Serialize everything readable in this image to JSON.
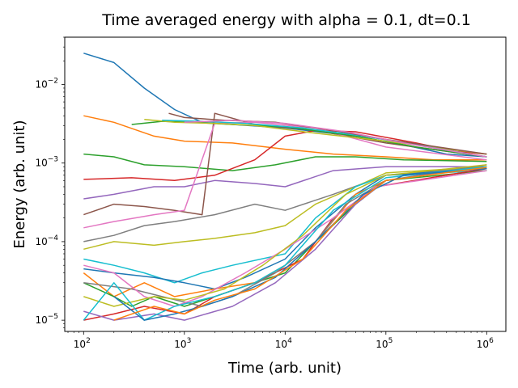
{
  "chart_data": {
    "type": "line",
    "title": "Time averaged energy with alpha = 0.1, dt=0.1",
    "xlabel": "Time (arb. unit)",
    "ylabel": "Energy (arb. unit)",
    "xscale": "log",
    "yscale": "log",
    "xlim": [
      65,
      1550000
    ],
    "ylim": [
      7.2e-06,
      0.04
    ],
    "grid": false,
    "x_ticks": [
      {
        "value": 100,
        "base": "10",
        "exp": "2"
      },
      {
        "value": 1000,
        "base": "10",
        "exp": "3"
      },
      {
        "value": 10000,
        "base": "10",
        "exp": "4"
      },
      {
        "value": 100000,
        "base": "10",
        "exp": "5"
      },
      {
        "value": 1000000,
        "base": "10",
        "exp": "6"
      }
    ],
    "y_ticks": [
      {
        "value": 1e-05,
        "base": "10",
        "exp": "−5"
      },
      {
        "value": 0.0001,
        "base": "10",
        "exp": "−4"
      },
      {
        "value": 0.001,
        "base": "10",
        "exp": "−3"
      },
      {
        "value": 0.01,
        "base": "10",
        "exp": "−2"
      }
    ],
    "series": [
      {
        "color": "#1f77b4",
        "points": [
          [
            100,
            0.025
          ],
          [
            200,
            0.019
          ],
          [
            400,
            0.009
          ],
          [
            800,
            0.0048
          ],
          [
            1500,
            0.0033
          ],
          [
            3000,
            0.0031
          ],
          [
            10000,
            0.0028
          ],
          [
            50000,
            0.0022
          ],
          [
            150000,
            0.0017
          ],
          [
            400000,
            0.0013
          ],
          [
            1000000,
            0.0012
          ]
        ]
      },
      {
        "color": "#ff7f0e",
        "points": [
          [
            100,
            0.004
          ],
          [
            200,
            0.0033
          ],
          [
            500,
            0.0022
          ],
          [
            1000,
            0.0019
          ],
          [
            3000,
            0.0018
          ],
          [
            10000,
            0.0015
          ],
          [
            30000,
            0.0013
          ],
          [
            100000,
            0.0012
          ],
          [
            300000,
            0.0011
          ],
          [
            1000000,
            0.0011
          ]
        ]
      },
      {
        "color": "#2ca02c",
        "points": [
          [
            100,
            0.0013
          ],
          [
            200,
            0.0012
          ],
          [
            400,
            0.00095
          ],
          [
            1000,
            0.0009
          ],
          [
            3000,
            0.0008
          ],
          [
            8000,
            0.00095
          ],
          [
            20000,
            0.0012
          ],
          [
            50000,
            0.0012
          ],
          [
            150000,
            0.0011
          ],
          [
            1000000,
            0.00105
          ]
        ]
      },
      {
        "color": "#d62728",
        "points": [
          [
            100,
            0.00062
          ],
          [
            300,
            0.00065
          ],
          [
            800,
            0.0006
          ],
          [
            2000,
            0.0007
          ],
          [
            5000,
            0.0011
          ],
          [
            10000,
            0.0022
          ],
          [
            20000,
            0.0026
          ],
          [
            50000,
            0.0025
          ],
          [
            200000,
            0.0018
          ],
          [
            500000,
            0.0014
          ],
          [
            1000000,
            0.0013
          ]
        ]
      },
      {
        "color": "#9467bd",
        "points": [
          [
            100,
            0.00035
          ],
          [
            200,
            0.0004
          ],
          [
            500,
            0.0005
          ],
          [
            1000,
            0.0005
          ],
          [
            2000,
            0.0006
          ],
          [
            5000,
            0.00055
          ],
          [
            10000,
            0.0005
          ],
          [
            30000,
            0.0008
          ],
          [
            100000,
            0.0009
          ],
          [
            1000000,
            0.0009
          ]
        ]
      },
      {
        "color": "#8c564b",
        "points": [
          [
            100,
            0.00022
          ],
          [
            200,
            0.0003
          ],
          [
            400,
            0.00028
          ],
          [
            800,
            0.00025
          ],
          [
            1500,
            0.00022
          ],
          [
            2000,
            0.0043
          ],
          [
            5000,
            0.0031
          ],
          [
            20000,
            0.0026
          ],
          [
            100000,
            0.0018
          ],
          [
            1000000,
            0.0012
          ]
        ]
      },
      {
        "color": "#e377c2",
        "points": [
          [
            100,
            0.00015
          ],
          [
            200,
            0.00018
          ],
          [
            500,
            0.00022
          ],
          [
            1000,
            0.00025
          ],
          [
            2000,
            0.0032
          ],
          [
            5000,
            0.0033
          ],
          [
            20000,
            0.0028
          ],
          [
            100000,
            0.0016
          ],
          [
            1000000,
            0.0011
          ]
        ]
      },
      {
        "color": "#7f7f7f",
        "points": [
          [
            100,
            0.0001
          ],
          [
            200,
            0.00012
          ],
          [
            400,
            0.00016
          ],
          [
            800,
            0.00018
          ],
          [
            2000,
            0.00022
          ],
          [
            5000,
            0.0003
          ],
          [
            10000,
            0.00025
          ],
          [
            30000,
            0.0004
          ],
          [
            100000,
            0.0007
          ],
          [
            1000000,
            0.0009
          ]
        ]
      },
      {
        "color": "#bcbd22",
        "points": [
          [
            100,
            8e-05
          ],
          [
            200,
            0.0001
          ],
          [
            500,
            9e-05
          ],
          [
            1000,
            0.0001
          ],
          [
            2000,
            0.00011
          ],
          [
            5000,
            0.00013
          ],
          [
            10000,
            0.00016
          ],
          [
            20000,
            0.0003
          ],
          [
            50000,
            0.0005
          ],
          [
            100000,
            0.00075
          ],
          [
            1000000,
            0.0009
          ]
        ]
      },
      {
        "color": "#17becf",
        "points": [
          [
            100,
            6e-05
          ],
          [
            200,
            5e-05
          ],
          [
            400,
            4e-05
          ],
          [
            800,
            3e-05
          ],
          [
            1500,
            4e-05
          ],
          [
            3000,
            5e-05
          ],
          [
            10000,
            7e-05
          ],
          [
            20000,
            0.0002
          ],
          [
            50000,
            0.0005
          ],
          [
            100000,
            0.0007
          ],
          [
            1000000,
            0.0008
          ]
        ]
      },
      {
        "color": "#1f77b4",
        "points": [
          [
            100,
            4.5e-05
          ],
          [
            200,
            4e-05
          ],
          [
            500,
            3.5e-05
          ],
          [
            1000,
            3e-05
          ],
          [
            2000,
            2.5e-05
          ],
          [
            4000,
            3.5e-05
          ],
          [
            10000,
            6e-05
          ],
          [
            20000,
            0.00015
          ],
          [
            50000,
            0.0004
          ],
          [
            100000,
            0.0007
          ],
          [
            1000000,
            0.00085
          ]
        ]
      },
      {
        "color": "#ff7f0e",
        "points": [
          [
            100,
            4e-05
          ],
          [
            200,
            2e-05
          ],
          [
            400,
            3e-05
          ],
          [
            800,
            2e-05
          ],
          [
            2000,
            2.5e-05
          ],
          [
            5000,
            3e-05
          ],
          [
            10000,
            5e-05
          ],
          [
            20000,
            0.0001
          ],
          [
            50000,
            0.0004
          ],
          [
            100000,
            0.0006
          ],
          [
            1000000,
            0.0009
          ]
        ]
      },
      {
        "color": "#2ca02c",
        "points": [
          [
            100,
            3e-05
          ],
          [
            200,
            2e-05
          ],
          [
            300,
            1.5e-05
          ],
          [
            500,
            2e-05
          ],
          [
            1000,
            1.5e-05
          ],
          [
            2000,
            2e-05
          ],
          [
            5000,
            3e-05
          ],
          [
            10000,
            4e-05
          ],
          [
            20000,
            0.0001
          ],
          [
            50000,
            0.0003
          ],
          [
            100000,
            0.0006
          ],
          [
            1000000,
            0.0008
          ]
        ]
      },
      {
        "color": "#d62728",
        "points": [
          [
            100,
            1e-05
          ],
          [
            200,
            1.2e-05
          ],
          [
            400,
            1.5e-05
          ],
          [
            1000,
            1.2e-05
          ],
          [
            2000,
            2e-05
          ],
          [
            5000,
            3e-05
          ],
          [
            15000,
            6e-05
          ],
          [
            30000,
            0.0002
          ],
          [
            80000,
            0.0005
          ],
          [
            1000000,
            0.00085
          ]
        ]
      },
      {
        "color": "#9467bd",
        "points": [
          [
            100,
            1.3e-05
          ],
          [
            200,
            1e-05
          ],
          [
            500,
            1.2e-05
          ],
          [
            1000,
            1e-05
          ],
          [
            3000,
            1.5e-05
          ],
          [
            8000,
            3e-05
          ],
          [
            20000,
            8e-05
          ],
          [
            50000,
            0.0003
          ],
          [
            100000,
            0.0006
          ],
          [
            1000000,
            0.0009
          ]
        ]
      },
      {
        "color": "#7f7f7f",
        "points": [
          [
            100,
            3e-05
          ],
          [
            300,
            2.5e-05
          ],
          [
            600,
            2e-05
          ],
          [
            1500,
            1.5e-05
          ],
          [
            3000,
            2e-05
          ],
          [
            8000,
            4e-05
          ],
          [
            20000,
            0.0001
          ],
          [
            40000,
            0.0003
          ],
          [
            100000,
            0.0006
          ],
          [
            1000000,
            0.00095
          ]
        ]
      },
      {
        "color": "#e377c2",
        "points": [
          [
            100,
            5e-05
          ],
          [
            200,
            4e-05
          ],
          [
            400,
            2e-05
          ],
          [
            800,
            1.5e-05
          ],
          [
            1500,
            2e-05
          ],
          [
            4000,
            4e-05
          ],
          [
            10000,
            8e-05
          ],
          [
            30000,
            0.0002
          ],
          [
            80000,
            0.0005
          ],
          [
            1000000,
            0.0008
          ]
        ]
      },
      {
        "color": "#bcbd22",
        "points": [
          [
            100,
            2e-05
          ],
          [
            200,
            1.5e-05
          ],
          [
            500,
            2e-05
          ],
          [
            1000,
            1.8e-05
          ],
          [
            2500,
            2.5e-05
          ],
          [
            6000,
            5e-05
          ],
          [
            15000,
            0.00012
          ],
          [
            40000,
            0.0004
          ],
          [
            100000,
            0.0007
          ],
          [
            1000000,
            0.00095
          ]
        ]
      },
      {
        "color": "#17becf",
        "points": [
          [
            100,
            1e-05
          ],
          [
            200,
            3e-05
          ],
          [
            400,
            1e-05
          ],
          [
            800,
            1.5e-05
          ],
          [
            2000,
            2e-05
          ],
          [
            5000,
            3e-05
          ],
          [
            10000,
            5e-05
          ],
          [
            30000,
            0.00025
          ],
          [
            100000,
            0.00065
          ],
          [
            1000000,
            0.0009
          ]
        ]
      },
      {
        "color": "#1f77b4",
        "points": [
          [
            200,
            2e-05
          ],
          [
            400,
            1e-05
          ],
          [
            800,
            1.2e-05
          ],
          [
            1500,
            1.5e-05
          ],
          [
            3000,
            2e-05
          ],
          [
            8000,
            3.5e-05
          ],
          [
            20000,
            0.0001
          ],
          [
            60000,
            0.0004
          ],
          [
            150000,
            0.0007
          ],
          [
            1000000,
            0.00085
          ]
        ]
      },
      {
        "color": "#ff7f0e",
        "points": [
          [
            200,
            1e-05
          ],
          [
            500,
            1.5e-05
          ],
          [
            1000,
            1.2e-05
          ],
          [
            2000,
            1.8e-05
          ],
          [
            5000,
            2.5e-05
          ],
          [
            15000,
            6e-05
          ],
          [
            40000,
            0.00025
          ],
          [
            100000,
            0.0006
          ],
          [
            1000000,
            0.00088
          ]
        ]
      },
      {
        "color": "#2ca02c",
        "points": [
          [
            300,
            0.0031
          ],
          [
            600,
            0.0034
          ],
          [
            1200,
            0.0033
          ],
          [
            3000,
            0.0031
          ],
          [
            10000,
            0.0029
          ],
          [
            50000,
            0.0022
          ],
          [
            200000,
            0.0016
          ],
          [
            1000000,
            0.0012
          ]
        ]
      },
      {
        "color": "#bcbd22",
        "points": [
          [
            400,
            0.0036
          ],
          [
            800,
            0.0033
          ],
          [
            2000,
            0.0032
          ],
          [
            5000,
            0.003
          ],
          [
            20000,
            0.0024
          ],
          [
            100000,
            0.0019
          ],
          [
            1000000,
            0.0013
          ]
        ]
      },
      {
        "color": "#17becf",
        "points": [
          [
            600,
            0.0035
          ],
          [
            1500,
            0.0034
          ],
          [
            4000,
            0.0032
          ],
          [
            15000,
            0.0028
          ],
          [
            60000,
            0.0022
          ],
          [
            200000,
            0.0017
          ],
          [
            1000000,
            0.0012
          ]
        ]
      },
      {
        "color": "#8c564b",
        "points": [
          [
            700,
            0.0043
          ],
          [
            1000,
            0.0038
          ],
          [
            2500,
            0.0035
          ],
          [
            8000,
            0.0033
          ],
          [
            30000,
            0.0026
          ],
          [
            100000,
            0.002
          ],
          [
            1000000,
            0.0013
          ]
        ]
      },
      {
        "color": "#e377c2",
        "points": [
          [
            1000,
            0.0033
          ],
          [
            3000,
            0.0035
          ],
          [
            10000,
            0.0032
          ],
          [
            40000,
            0.0025
          ],
          [
            150000,
            0.0018
          ],
          [
            1000000,
            0.0012
          ]
        ]
      }
    ]
  }
}
